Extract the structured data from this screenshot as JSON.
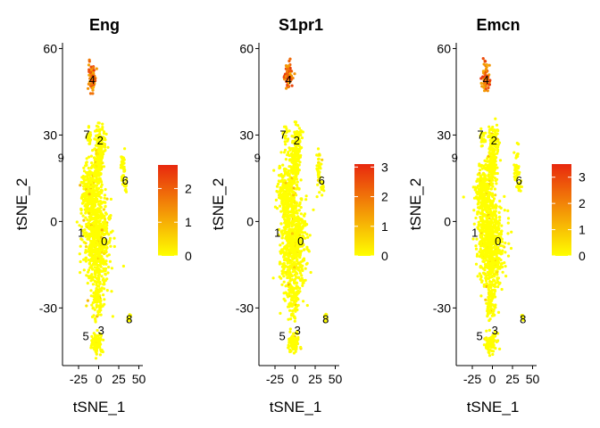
{
  "chart_data": [
    {
      "type": "scatter",
      "title": "Eng",
      "xlabel": "tSNE_1",
      "ylabel": "tSNE_2",
      "xlim": [
        -45,
        55
      ],
      "ylim": [
        -50,
        62
      ],
      "xticks": [
        -25,
        0,
        25,
        50
      ],
      "xtick_labels": [
        "-25",
        "0",
        "25",
        "50"
      ],
      "yticks": [
        -30,
        0,
        30,
        60
      ],
      "ytick_labels": [
        "-30",
        "0",
        "30",
        "60"
      ],
      "color_scale": {
        "low": "#ffff00",
        "high": "#e8280e",
        "min": 0,
        "max": 2.7,
        "ticks": [
          0,
          1,
          2
        ],
        "tick_labels": [
          "0",
          "1",
          "2"
        ]
      },
      "cluster_labels": [
        {
          "label": "0",
          "x": 7,
          "y": -7
        },
        {
          "label": "1",
          "x": -22,
          "y": -4
        },
        {
          "label": "2",
          "x": 2,
          "y": 28
        },
        {
          "label": "3",
          "x": 3,
          "y": -38
        },
        {
          "label": "4",
          "x": -8,
          "y": 49
        },
        {
          "label": "5",
          "x": -16,
          "y": -40
        },
        {
          "label": "6",
          "x": 33,
          "y": 14
        },
        {
          "label": "7",
          "x": -15,
          "y": 30
        },
        {
          "label": "8",
          "x": 38,
          "y": -34
        },
        {
          "label": "9",
          "x": -47,
          "y": 22
        }
      ]
    },
    {
      "type": "scatter",
      "title": "S1pr1",
      "xlabel": "tSNE_1",
      "ylabel": "tSNE_2",
      "xlim": [
        -45,
        55
      ],
      "ylim": [
        -50,
        62
      ],
      "xticks": [
        -25,
        0,
        25,
        50
      ],
      "xtick_labels": [
        "-25",
        "0",
        "25",
        "50"
      ],
      "yticks": [
        -30,
        0,
        30,
        60
      ],
      "ytick_labels": [
        "-30",
        "0",
        "30",
        "60"
      ],
      "color_scale": {
        "low": "#ffff00",
        "high": "#e8280e",
        "min": 0,
        "max": 3.1,
        "ticks": [
          0,
          1,
          2,
          3
        ],
        "tick_labels": [
          "0",
          "1",
          "2",
          "3"
        ]
      },
      "cluster_labels": [
        {
          "label": "0",
          "x": 7,
          "y": -7
        },
        {
          "label": "1",
          "x": -22,
          "y": -4
        },
        {
          "label": "2",
          "x": 2,
          "y": 28
        },
        {
          "label": "3",
          "x": 3,
          "y": -38
        },
        {
          "label": "4",
          "x": -8,
          "y": 49
        },
        {
          "label": "5",
          "x": -16,
          "y": -40
        },
        {
          "label": "6",
          "x": 33,
          "y": 14
        },
        {
          "label": "7",
          "x": -15,
          "y": 30
        },
        {
          "label": "8",
          "x": 38,
          "y": -34
        },
        {
          "label": "9",
          "x": -47,
          "y": 22
        }
      ]
    },
    {
      "type": "scatter",
      "title": "Emcn",
      "xlabel": "tSNE_1",
      "ylabel": "tSNE_2",
      "xlim": [
        -45,
        55
      ],
      "ylim": [
        -50,
        62
      ],
      "xticks": [
        -25,
        0,
        25,
        50
      ],
      "xtick_labels": [
        "-25",
        "0",
        "25",
        "50"
      ],
      "yticks": [
        -30,
        0,
        30,
        60
      ],
      "ytick_labels": [
        "-30",
        "0",
        "30",
        "60"
      ],
      "color_scale": {
        "low": "#ffff00",
        "high": "#e8280e",
        "min": 0,
        "max": 3.5,
        "ticks": [
          0,
          1,
          2,
          3
        ],
        "tick_labels": [
          "0",
          "1",
          "2",
          "3"
        ]
      },
      "cluster_labels": [
        {
          "label": "0",
          "x": 7,
          "y": -7
        },
        {
          "label": "1",
          "x": -22,
          "y": -4
        },
        {
          "label": "2",
          "x": 2,
          "y": 28
        },
        {
          "label": "3",
          "x": 3,
          "y": -38
        },
        {
          "label": "4",
          "x": -8,
          "y": 49
        },
        {
          "label": "5",
          "x": -16,
          "y": -40
        },
        {
          "label": "6",
          "x": 33,
          "y": 14
        },
        {
          "label": "7",
          "x": -15,
          "y": 30
        },
        {
          "label": "8",
          "x": 38,
          "y": -34
        },
        {
          "label": "9",
          "x": -47,
          "y": 22
        }
      ]
    }
  ],
  "colors": {
    "point_low": "#ffff00",
    "point_high": "#e8280e",
    "axis": "#000000"
  }
}
